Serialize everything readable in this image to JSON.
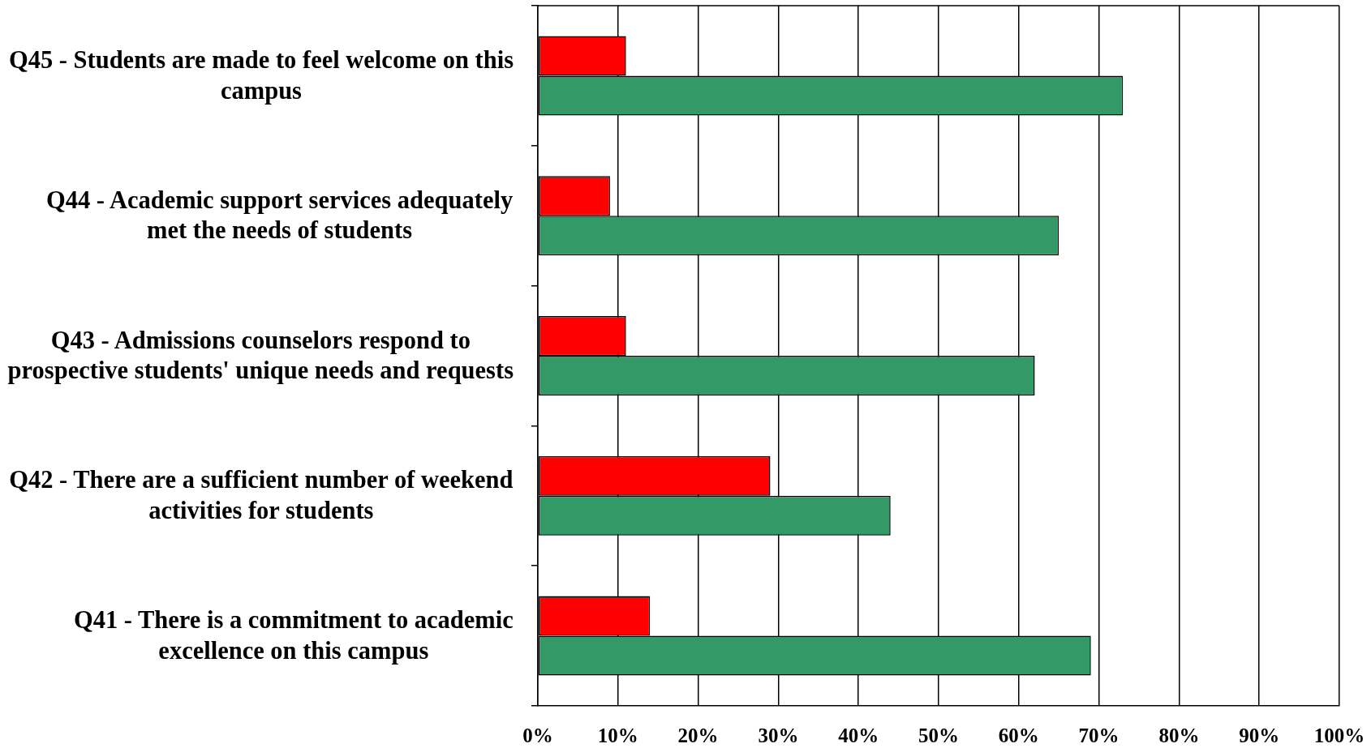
{
  "chart_data": {
    "type": "bar",
    "orientation": "horizontal",
    "categories": [
      "Q45 - Students are made to feel welcome on this campus",
      "Q44 - Academic support services adequately met the needs of students",
      "Q43 - Admissions counselors respond to prospective students' unique needs and requests",
      "Q42 - There are a sufficient number of weekend activities for students",
      "Q41 - There is a commitment to academic excellence on this campus"
    ],
    "series": [
      {
        "color": "#ff0000",
        "values": [
          11,
          9,
          11,
          29,
          14
        ]
      },
      {
        "color": "#339966",
        "values": [
          73,
          65,
          62,
          44,
          69
        ]
      }
    ],
    "xlim": [
      0,
      100
    ],
    "xticks": [
      {
        "value": 0,
        "label": "0%"
      },
      {
        "value": 10,
        "label": "10%"
      },
      {
        "value": 20,
        "label": "20%"
      },
      {
        "value": 30,
        "label": "30%"
      },
      {
        "value": 40,
        "label": "40%"
      },
      {
        "value": 50,
        "label": "50%"
      },
      {
        "value": 60,
        "label": "60%"
      },
      {
        "value": 70,
        "label": "70%"
      },
      {
        "value": 80,
        "label": "80%"
      },
      {
        "value": 90,
        "label": "90%"
      },
      {
        "value": 100,
        "label": "100%"
      }
    ],
    "grid": "x",
    "legend": false
  }
}
